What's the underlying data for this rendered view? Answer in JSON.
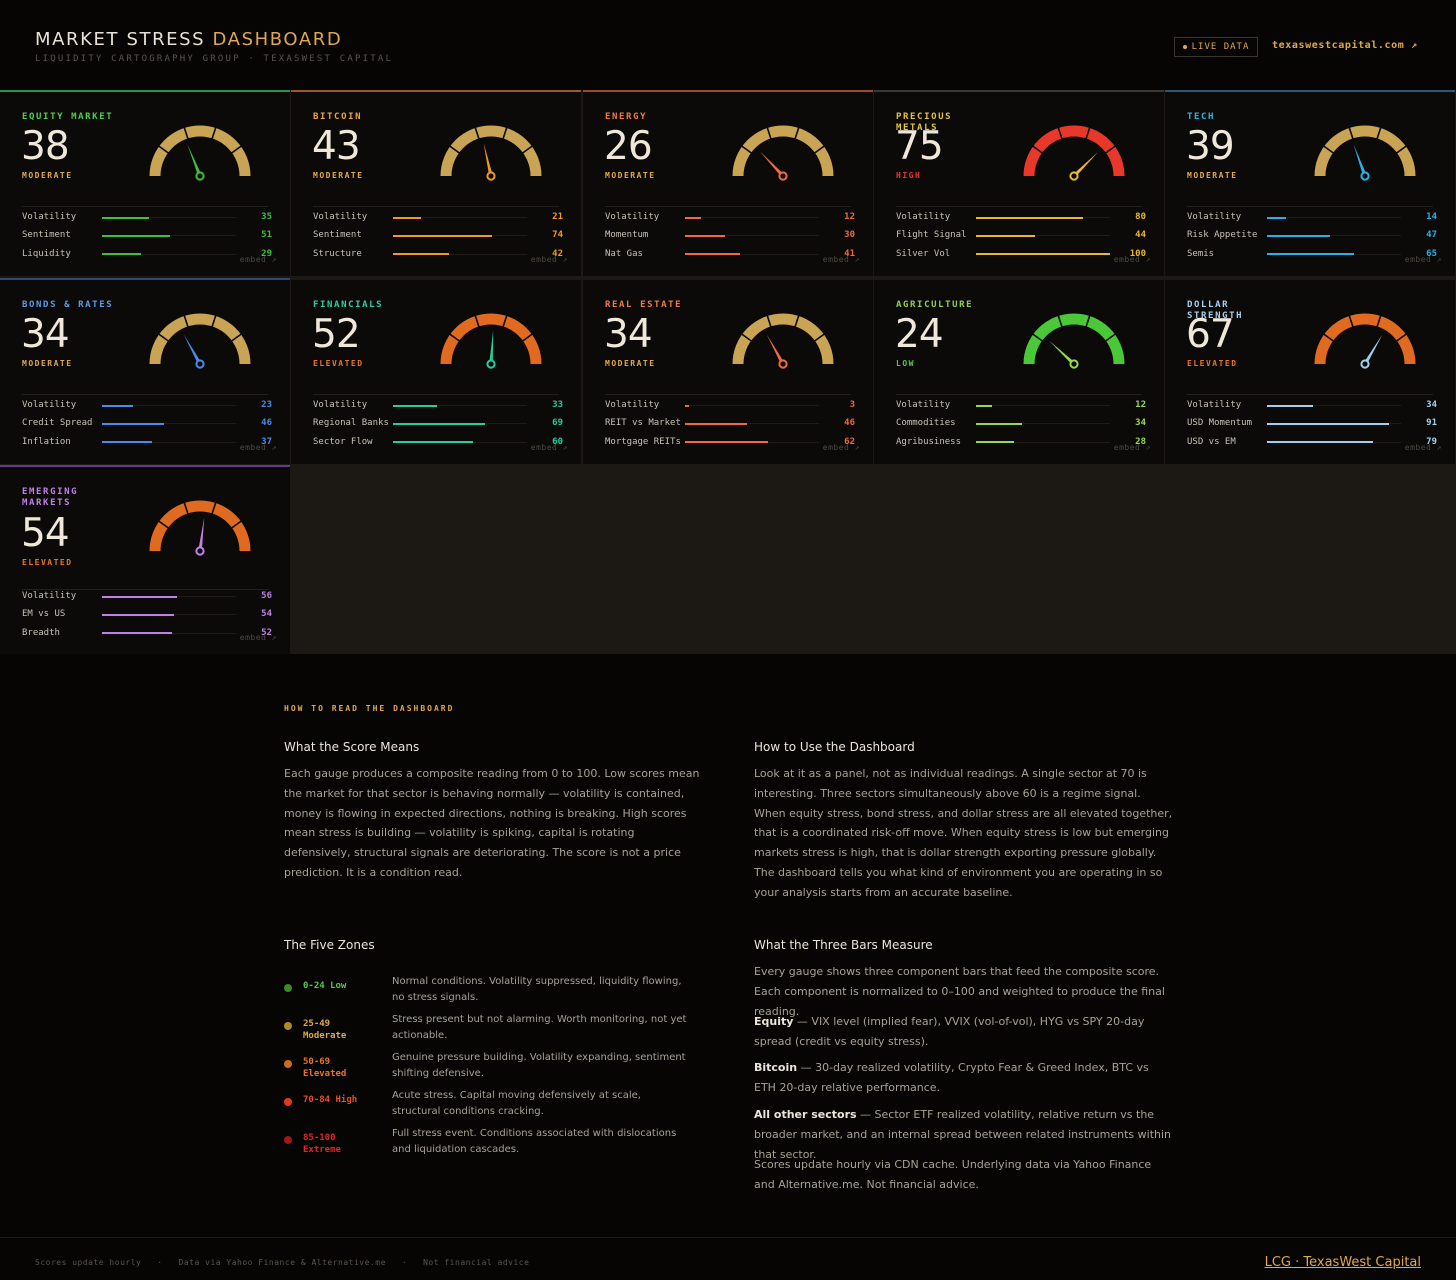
{
  "header": {
    "title_main": "MARKET STRESS ",
    "title_accent": "DASHBOARD",
    "subtitle": "LIQUIDITY CARTOGRAPHY GROUP   ·   TEXASWEST CAPITAL",
    "live_label": "LIVE DATA",
    "site_link": "texaswestcapital.com ↗"
  },
  "cards": [
    {
      "name": "EQUITY MARKET",
      "score": "38",
      "zone": "MODERATE",
      "name_color": "#4ccf4c",
      "zone_color": "#e0a84e",
      "arc_color": "#c9a455",
      "needle_color": "#3fbf3a",
      "line_color": "#2f8f4e",
      "metrics": [
        {
          "label": "Volatility",
          "value": 35
        },
        {
          "label": "Sentiment",
          "value": 51
        },
        {
          "label": "Liquidity",
          "value": 29
        }
      ],
      "embed": "embed ↗"
    },
    {
      "name": "BITCOIN",
      "score": "43",
      "zone": "MODERATE",
      "name_color": "#f0a43a",
      "zone_color": "#e0a84e",
      "arc_color": "#c9a455",
      "needle_color": "#f09a20",
      "line_color": "#9a5a25",
      "metrics": [
        {
          "label": "Volatility",
          "value": 21
        },
        {
          "label": "Sentiment",
          "value": 74
        },
        {
          "label": "Structure",
          "value": 42
        }
      ],
      "embed": "embed ↗"
    },
    {
      "name": "ENERGY",
      "score": "26",
      "zone": "MODERATE",
      "name_color": "#f07a4a",
      "zone_color": "#e0a84e",
      "arc_color": "#c9a455",
      "needle_color": "#f06a40",
      "line_color": "#9a4a2a",
      "metrics": [
        {
          "label": "Volatility",
          "value": 12
        },
        {
          "label": "Momentum",
          "value": 30
        },
        {
          "label": "Nat Gas",
          "value": 41
        }
      ],
      "embed": "embed ↗"
    },
    {
      "name": "PRECIOUS METALS",
      "score": "75",
      "zone": "HIGH",
      "name_color": "#e8c33a",
      "zone_color": "#e8382a",
      "arc_color": "#e8382a",
      "needle_color": "#e8b830",
      "line_color": "#3a3a3a",
      "metrics": [
        {
          "label": "Volatility",
          "value": 80
        },
        {
          "label": "Flight Signal",
          "value": 44
        },
        {
          "label": "Silver Vol",
          "value": 100
        }
      ],
      "embed": "embed ↗"
    },
    {
      "name": "TECH",
      "score": "39",
      "zone": "MODERATE",
      "name_color": "#2ab8e8",
      "zone_color": "#e0a84e",
      "arc_color": "#c9a455",
      "needle_color": "#2ab0e8",
      "line_color": "#2a5a7a",
      "metrics": [
        {
          "label": "Volatility",
          "value": 14
        },
        {
          "label": "Risk Appetite",
          "value": 47
        },
        {
          "label": "Semis",
          "value": 65
        }
      ],
      "embed": "embed ↗"
    },
    {
      "name": "BONDS & RATES",
      "score": "34",
      "zone": "MODERATE",
      "name_color": "#5a9ae8",
      "zone_color": "#e0a84e",
      "arc_color": "#c9a455",
      "needle_color": "#4a8ae8",
      "line_color": "#2a4a7a",
      "metrics": [
        {
          "label": "Volatility",
          "value": 23
        },
        {
          "label": "Credit Spread",
          "value": 46
        },
        {
          "label": "Inflation",
          "value": 37
        }
      ],
      "embed": "embed ↗"
    },
    {
      "name": "FINANCIALS",
      "score": "52",
      "zone": "ELEVATED",
      "name_color": "#2ad0a8",
      "zone_color": "#e8742a",
      "arc_color": "#e06a20",
      "needle_color": "#20d0a0",
      "line_color": "#1d1a16",
      "metrics": [
        {
          "label": "Volatility",
          "value": 33
        },
        {
          "label": "Regional Banks",
          "value": 69
        },
        {
          "label": "Sector Flow",
          "value": 60
        }
      ],
      "embed": "embed ↗"
    },
    {
      "name": "REAL ESTATE",
      "score": "34",
      "zone": "MODERATE",
      "name_color": "#f07a4a",
      "zone_color": "#e0a84e",
      "arc_color": "#c9a455",
      "needle_color": "#f06a40",
      "line_color": "#1d1a16",
      "metrics": [
        {
          "label": "Volatility",
          "value": 3
        },
        {
          "label": "REIT vs Market",
          "value": 46
        },
        {
          "label": "Mortgage REITs",
          "value": 62
        }
      ],
      "embed": "embed ↗"
    },
    {
      "name": "AGRICULTURE",
      "score": "24",
      "zone": "LOW",
      "name_color": "#90d050",
      "zone_color": "#5ac84a",
      "arc_color": "#4ac838",
      "needle_color": "#98d850",
      "line_color": "#1d1a16",
      "metrics": [
        {
          "label": "Volatility",
          "value": 12
        },
        {
          "label": "Commodities",
          "value": 34
        },
        {
          "label": "Agribusiness",
          "value": 28
        }
      ],
      "embed": "embed ↗"
    },
    {
      "name": "DOLLAR STRENGTH",
      "score": "67",
      "zone": "ELEVATED",
      "name_color": "#a8d0f0",
      "zone_color": "#e8742a",
      "arc_color": "#e06a20",
      "needle_color": "#a0d0f0",
      "line_color": "#1d1a16",
      "metrics": [
        {
          "label": "Volatility",
          "value": 34
        },
        {
          "label": "USD Momentum",
          "value": 91
        },
        {
          "label": "USD vs EM",
          "value": 79
        }
      ],
      "embed": "embed ↗"
    },
    {
      "name": "EMERGING MARKETS",
      "score": "54",
      "zone": "ELEVATED",
      "name_color": "#c080e8",
      "zone_color": "#e8742a",
      "arc_color": "#e06a20",
      "needle_color": "#c080e8",
      "line_color": "#6a3a8a",
      "metrics": [
        {
          "label": "Volatility",
          "value": 56
        },
        {
          "label": "EM vs US",
          "value": 54
        },
        {
          "label": "Breadth",
          "value": 52
        }
      ],
      "embed": "embed ↗"
    }
  ],
  "explainer": {
    "kicker": "HOW TO READ THE DASHBOARD",
    "score_title": "What the Score Means",
    "score_text": "Each gauge produces a composite reading from 0 to 100. Low scores mean the market for that sector is behaving normally — volatility is contained, money is flowing in expected directions, nothing is breaking. High scores mean stress is building — volatility is spiking, capital is rotating defensively, structural signals are deteriorating. The score is not a price prediction. It is a condition read.",
    "use_title": "How to Use the Dashboard",
    "use_text": "Look at it as a panel, not as individual readings. A single sector at 70 is interesting. Three sectors simultaneously above 60 is a regime signal. When equity stress, bond stress, and dollar stress are all elevated together, that is a coordinated risk-off move. When equity stress is low but emerging markets stress is high, that is dollar strength exporting pressure globally. The dashboard tells you what kind of environment you are operating in so your analysis starts from an accurate baseline.",
    "zones_title": "The Five Zones",
    "zones": [
      {
        "label": "0-24 Low",
        "color": "#3c8a2a",
        "text_color": "#5ac84a",
        "desc": "Normal conditions. Volatility suppressed, liquidity flowing, no stress signals."
      },
      {
        "label": "25-49 Moderate",
        "color": "#b08a28",
        "text_color": "#e0a84e",
        "desc": "Stress present but not alarming. Worth monitoring, not yet actionable."
      },
      {
        "label": "50-69 Elevated",
        "color": "#d06a20",
        "text_color": "#e8742a",
        "desc": "Genuine pressure building. Volatility expanding, sentiment shifting defensive."
      },
      {
        "label": "70-84 High",
        "color": "#e03a20",
        "text_color": "#f04a2a",
        "desc": "Acute stress. Capital moving defensively at scale, structural conditions cracking."
      },
      {
        "label": "85-100 Extreme",
        "color": "#a01818",
        "text_color": "#d82828",
        "desc": "Full stress event. Conditions associated with dislocations and liquidation cascades."
      }
    ],
    "bars_title": "What the Three Bars Measure",
    "bars_intro": "Every gauge shows three component bars that feed the composite score. Each component is normalized to 0–100 and weighted to produce the final reading.",
    "equity_label": "Equity",
    "equity_text": " — VIX level (implied fear), VVIX (vol-of-vol), HYG vs SPY 20-day spread (credit vs equity stress).",
    "bitcoin_label": "Bitcoin",
    "bitcoin_text": " — 30-day realized volatility, Crypto Fear & Greed Index, BTC vs ETH 20-day relative performance.",
    "other_label": "All other sectors",
    "other_text": " — Sector ETF realized volatility, relative return vs the broader market, and an internal spread between related instruments within that sector.",
    "update_text": "Scores update hourly via CDN cache. Underlying data via Yahoo Finance and Alternative.me. Not financial advice."
  },
  "footer": {
    "left": "Scores update hourly   ·   Data via Yahoo Finance & Alternative.me   ·   Not financial advice",
    "right": "LCG · TexasWest Capital"
  }
}
